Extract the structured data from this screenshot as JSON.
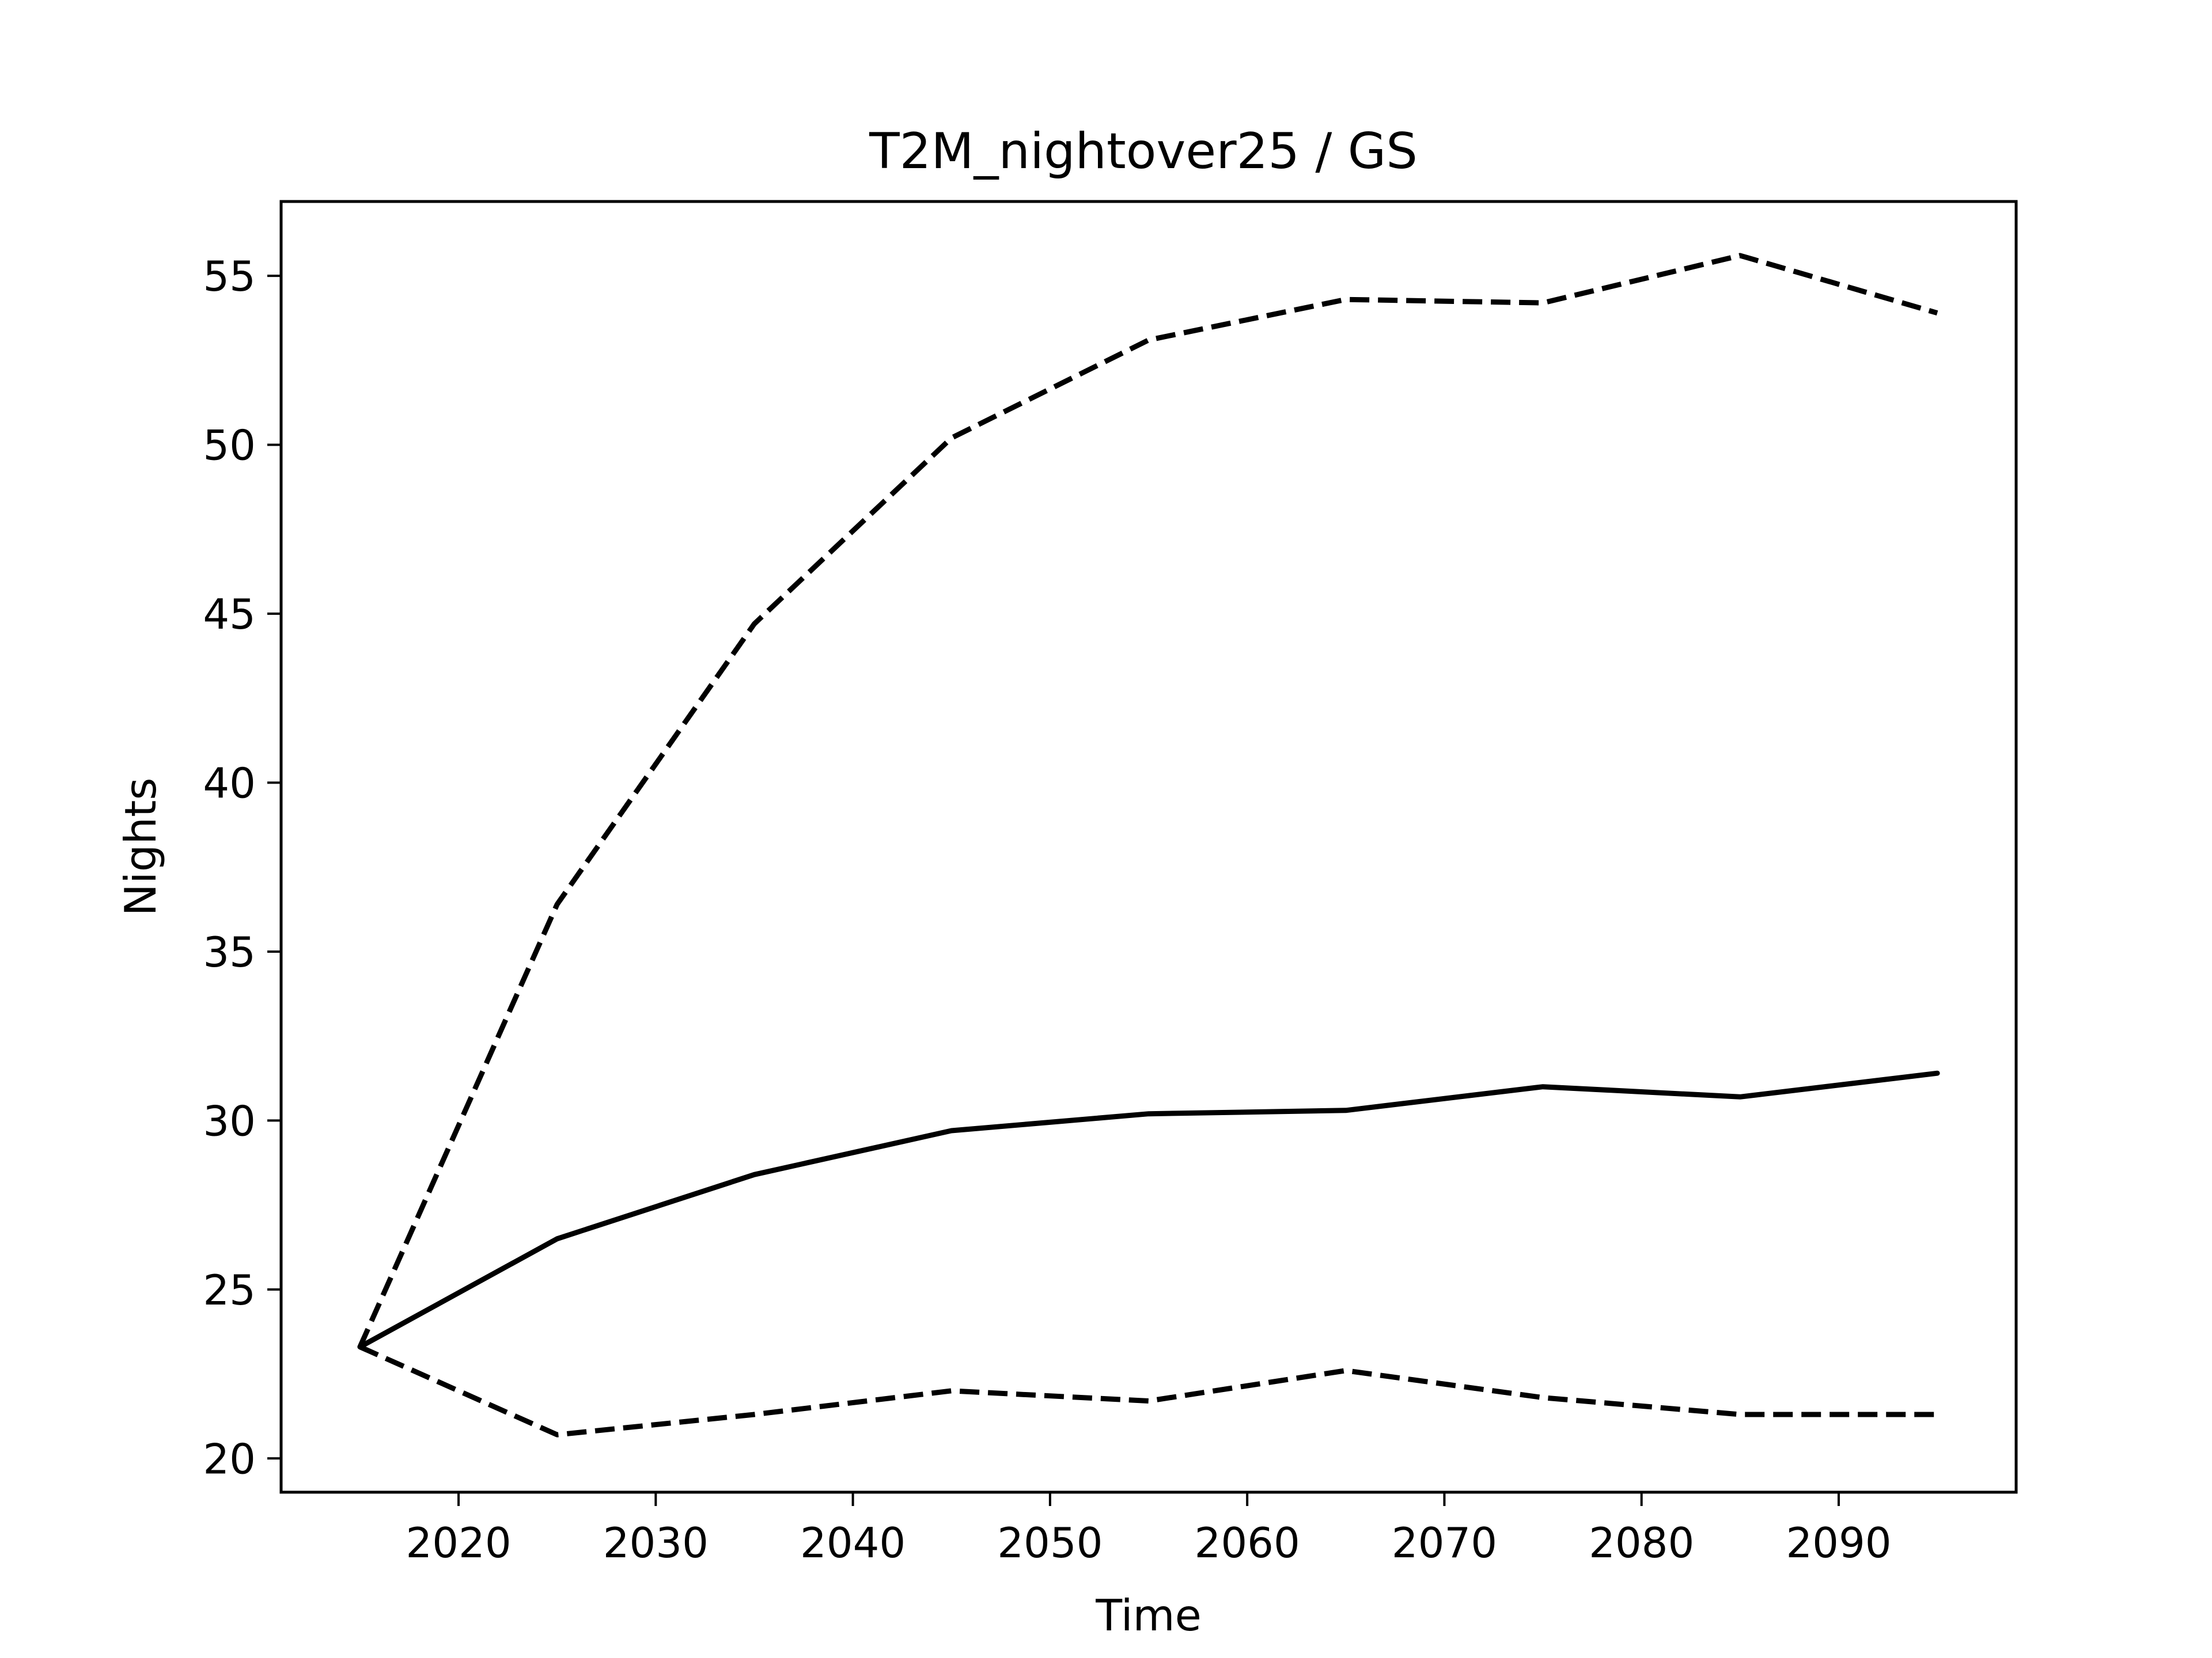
{
  "chart_data": {
    "type": "line",
    "title": "T2M_nightover25 / GS",
    "xlabel": "Time",
    "ylabel": "Nights",
    "xlim": [
      2011,
      2099
    ],
    "ylim": [
      19,
      57.2
    ],
    "xticks": [
      2020,
      2030,
      2040,
      2050,
      2060,
      2070,
      2080,
      2090
    ],
    "yticks": [
      20,
      25,
      30,
      35,
      40,
      45,
      50,
      55
    ],
    "grid": false,
    "x": [
      2015,
      2025,
      2035,
      2045,
      2055,
      2065,
      2075,
      2085,
      2095
    ],
    "series": [
      {
        "style": "solid",
        "color": "#000000",
        "values": [
          23.3,
          26.5,
          28.4,
          29.7,
          30.2,
          30.3,
          31.0,
          30.7,
          31.4
        ]
      },
      {
        "style": "dashed",
        "color": "#000000",
        "values": [
          23.3,
          36.4,
          44.7,
          50.2,
          53.1,
          54.3,
          54.2,
          55.6,
          53.9
        ]
      },
      {
        "style": "dashed",
        "color": "#000000",
        "values": [
          23.3,
          20.7,
          21.3,
          22.0,
          21.7,
          22.6,
          21.8,
          21.3,
          21.3
        ]
      }
    ]
  }
}
